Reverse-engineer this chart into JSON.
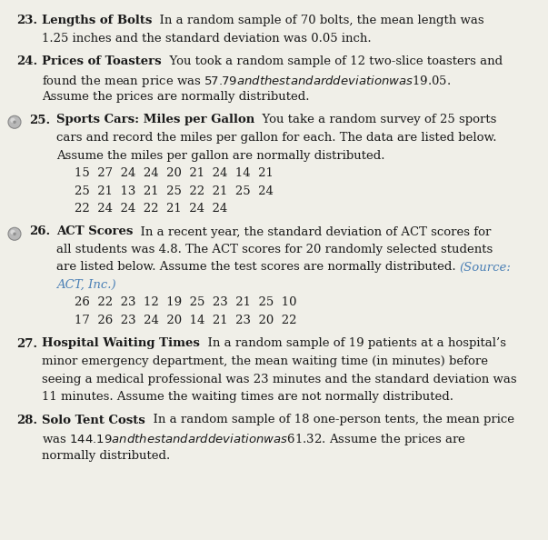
{
  "bg_color": "#f0efe8",
  "text_color": "#1a1a1a",
  "source_color": "#4a7fb5",
  "items": [
    {
      "number": "23.",
      "has_icon": false,
      "title": "Lengths of Bolts",
      "lines": [
        {
          "parts": [
            {
              "text": "Lengths of Bolts",
              "bold": true,
              "italic": false,
              "color": "text"
            },
            {
              "text": "  In a random sample of 70 bolts, the mean length was",
              "bold": false,
              "italic": false,
              "color": "text"
            }
          ]
        },
        {
          "parts": [
            {
              "text": "1.25 inches and the standard deviation was 0.05 inch.",
              "bold": false,
              "italic": false,
              "color": "text"
            }
          ],
          "indent": true
        }
      ]
    },
    {
      "number": "24.",
      "has_icon": false,
      "title": "Prices of Toasters",
      "lines": [
        {
          "parts": [
            {
              "text": "Prices of Toasters",
              "bold": true,
              "italic": false,
              "color": "text"
            },
            {
              "text": "  You took a random sample of 12 two-slice toasters and",
              "bold": false,
              "italic": false,
              "color": "text"
            }
          ]
        },
        {
          "parts": [
            {
              "text": "found the mean price was $57.79 and the standard deviation was $19.05.",
              "bold": false,
              "italic": false,
              "color": "text"
            }
          ],
          "indent": true
        },
        {
          "parts": [
            {
              "text": "Assume the prices are normally distributed.",
              "bold": false,
              "italic": false,
              "color": "text"
            }
          ],
          "indent": true
        }
      ]
    },
    {
      "number": "25.",
      "has_icon": true,
      "title": "Sports Cars: Miles per Gallon",
      "lines": [
        {
          "parts": [
            {
              "text": "Sports Cars: Miles per Gallon",
              "bold": true,
              "italic": false,
              "color": "text"
            },
            {
              "text": "  You take a random survey of 25 sports",
              "bold": false,
              "italic": false,
              "color": "text"
            }
          ]
        },
        {
          "parts": [
            {
              "text": "cars and record the miles per gallon for each. The data are listed below.",
              "bold": false,
              "italic": false,
              "color": "text"
            }
          ],
          "indent": true
        },
        {
          "parts": [
            {
              "text": "Assume the miles per gallon are normally distributed.",
              "bold": false,
              "italic": false,
              "color": "text"
            }
          ],
          "indent": true
        },
        {
          "parts": [
            {
              "text": "15  27  24  24  20  21  24  14  21",
              "bold": false,
              "italic": false,
              "color": "text"
            }
          ],
          "indent": true,
          "data": true
        },
        {
          "parts": [
            {
              "text": "25  21  13  21  25  22  21  25  24",
              "bold": false,
              "italic": false,
              "color": "text"
            }
          ],
          "indent": true,
          "data": true
        },
        {
          "parts": [
            {
              "text": "22  24  24  22  21  24  24",
              "bold": false,
              "italic": false,
              "color": "text"
            }
          ],
          "indent": true,
          "data": true
        }
      ]
    },
    {
      "number": "26.",
      "has_icon": true,
      "title": "ACT Scores",
      "lines": [
        {
          "parts": [
            {
              "text": "ACT Scores",
              "bold": true,
              "italic": false,
              "color": "text"
            },
            {
              "text": "  In a recent year, the standard deviation of ACT scores for",
              "bold": false,
              "italic": false,
              "color": "text"
            }
          ]
        },
        {
          "parts": [
            {
              "text": "all students was 4.8. The ACT scores for 20 randomly selected students",
              "bold": false,
              "italic": false,
              "color": "text"
            }
          ],
          "indent": true
        },
        {
          "parts": [
            {
              "text": "are listed below. Assume the test scores are normally distributed. ",
              "bold": false,
              "italic": false,
              "color": "text"
            },
            {
              "text": "(Source:",
              "bold": false,
              "italic": true,
              "color": "source"
            }
          ],
          "indent": true
        },
        {
          "parts": [
            {
              "text": "ACT, Inc.)",
              "bold": false,
              "italic": true,
              "color": "source"
            }
          ],
          "indent": true
        },
        {
          "parts": [
            {
              "text": "26  22  23  12  19  25  23  21  25  10",
              "bold": false,
              "italic": false,
              "color": "text"
            }
          ],
          "indent": true,
          "data": true
        },
        {
          "parts": [
            {
              "text": "17  26  23  24  20  14  21  23  20  22",
              "bold": false,
              "italic": false,
              "color": "text"
            }
          ],
          "indent": true,
          "data": true
        }
      ]
    },
    {
      "number": "27.",
      "has_icon": false,
      "title": "Hospital Waiting Times",
      "lines": [
        {
          "parts": [
            {
              "text": "Hospital Waiting Times",
              "bold": true,
              "italic": false,
              "color": "text"
            },
            {
              "text": "  In a random sample of 19 patients at a hospital’s",
              "bold": false,
              "italic": false,
              "color": "text"
            }
          ]
        },
        {
          "parts": [
            {
              "text": "minor emergency department, the mean waiting time (in minutes) before",
              "bold": false,
              "italic": false,
              "color": "text"
            }
          ],
          "indent": true
        },
        {
          "parts": [
            {
              "text": "seeing a medical professional was 23 minutes and the standard deviation was",
              "bold": false,
              "italic": false,
              "color": "text"
            }
          ],
          "indent": true
        },
        {
          "parts": [
            {
              "text": "11 minutes. Assume the waiting times are not normally distributed.",
              "bold": false,
              "italic": false,
              "color": "text"
            }
          ],
          "indent": true
        }
      ]
    },
    {
      "number": "28.",
      "has_icon": false,
      "title": "Solo Tent Costs",
      "lines": [
        {
          "parts": [
            {
              "text": "Solo Tent Costs",
              "bold": true,
              "italic": false,
              "color": "text"
            },
            {
              "text": "  In a random sample of 18 one-person tents, the mean price",
              "bold": false,
              "italic": false,
              "color": "text"
            }
          ]
        },
        {
          "parts": [
            {
              "text": "was $144.19 and the standard deviation was $61.32. Assume the prices are",
              "bold": false,
              "italic": false,
              "color": "text"
            }
          ],
          "indent": true
        },
        {
          "parts": [
            {
              "text": "normally distributed.",
              "bold": false,
              "italic": false,
              "color": "text"
            }
          ],
          "indent": true
        }
      ]
    }
  ]
}
